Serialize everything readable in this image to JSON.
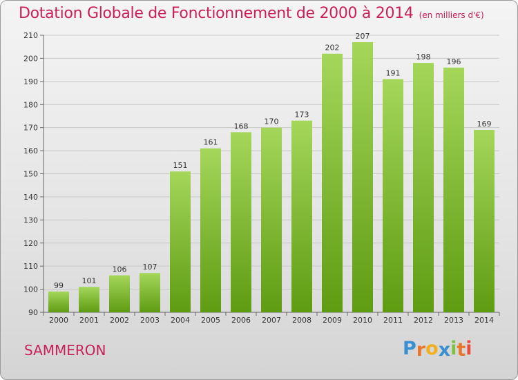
{
  "chart_data": {
    "type": "bar",
    "title": "Dotation Globale de Fonctionnement de 2000 à 2014",
    "subtitle": "(en milliers d'€)",
    "categories": [
      "2000",
      "2001",
      "2002",
      "2003",
      "2004",
      "2005",
      "2006",
      "2007",
      "2008",
      "2009",
      "2010",
      "2011",
      "2012",
      "2013",
      "2014"
    ],
    "values": [
      99,
      101,
      106,
      107,
      151,
      161,
      168,
      170,
      173,
      202,
      207,
      191,
      198,
      196,
      169
    ],
    "ylim": [
      90,
      210
    ],
    "yticks": [
      "90",
      "100",
      "110",
      "120",
      "130",
      "140",
      "150",
      "160",
      "170",
      "180",
      "190",
      "200",
      "210"
    ],
    "xlabel": "",
    "ylabel": "",
    "grid": true
  },
  "commune": "SAMMERON",
  "logo": {
    "letters": [
      "P",
      "r",
      "o",
      "x",
      "i",
      "t",
      "i"
    ],
    "colors": [
      "#3a8fd0",
      "#e8772e",
      "#f0b020",
      "#3a8fd0",
      "#7cc243",
      "#e8772e",
      "#e84c3d"
    ]
  },
  "colors": {
    "title": "#c8205a",
    "bar_light": "#a4d65a",
    "bar_dark": "#5e9c12"
  }
}
